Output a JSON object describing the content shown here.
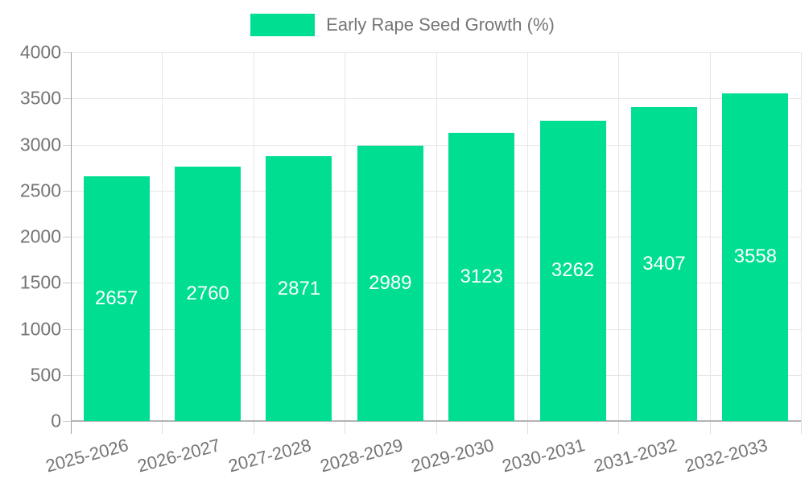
{
  "chart_data": {
    "type": "bar",
    "title": "",
    "legend": {
      "position": "top",
      "label": "Early Rape Seed Growth (%)"
    },
    "categories": [
      "2025-2026",
      "2026-2027",
      "2027-2028",
      "2028-2029",
      "2029-2030",
      "2030-2031",
      "2031-2032",
      "2032-2033"
    ],
    "series": [
      {
        "name": "Early Rape Seed Growth (%)",
        "values": [
          2657,
          2760,
          2871,
          2989,
          3123,
          3262,
          3407,
          3558
        ]
      }
    ],
    "data_labels_shown": true,
    "xlabel": "",
    "ylabel": "",
    "ylim": [
      0,
      4000
    ],
    "ytick_interval": 500,
    "yticks": [
      0,
      500,
      1000,
      1500,
      2000,
      2500,
      3000,
      3500,
      4000
    ],
    "grid": "on",
    "colors": {
      "bar": "#00de92",
      "bar_label_text": "#ffffff",
      "axis_text": "#757575",
      "gridline": "#e6e6e6",
      "axis_line": "#9e9e9e",
      "baseline": "#b3b3b3",
      "legend_text": "#757575"
    }
  }
}
